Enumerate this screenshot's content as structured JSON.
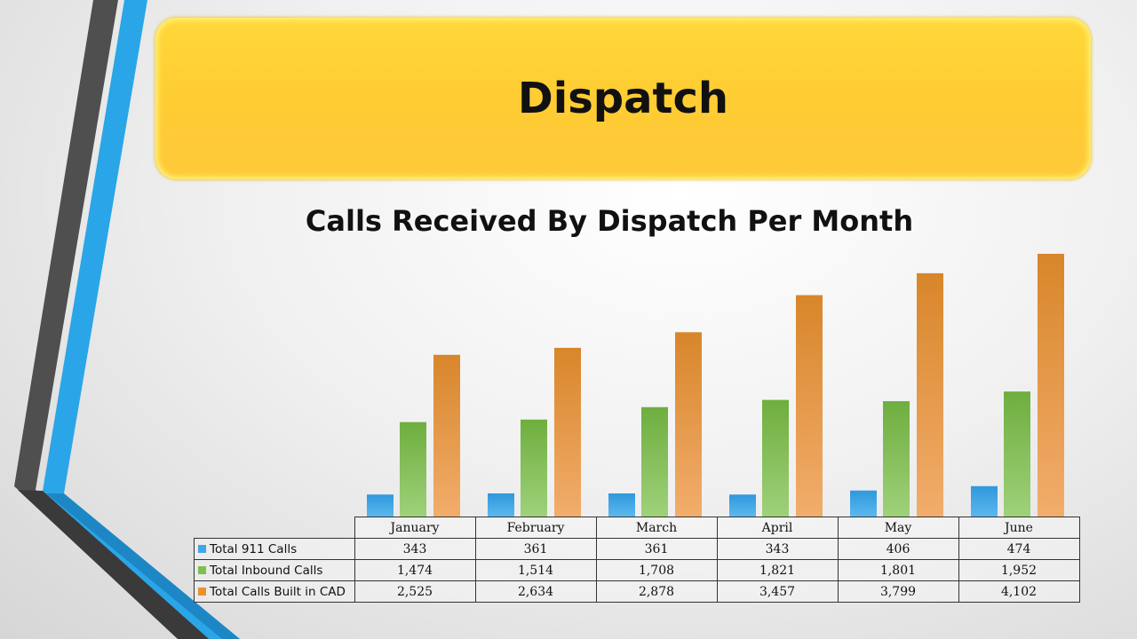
{
  "slide": {
    "title": "Dispatch"
  },
  "colors": {
    "banner": "#ffcc33",
    "series": [
      "#3fa7e6",
      "#7fbf4d",
      "#e8922f"
    ],
    "accent_blue": "#2aa6e8",
    "accent_gray": "#555555"
  },
  "chart_data": {
    "type": "bar",
    "title": "Calls Received By Dispatch Per Month",
    "xlabel": "",
    "ylabel": "",
    "ylim": [
      0,
      4200
    ],
    "grid": false,
    "legend": "data table",
    "categories": [
      "January",
      "February",
      "March",
      "April",
      "May",
      "June"
    ],
    "series": [
      {
        "name": "Total 911 Calls",
        "values": [
          343,
          361,
          361,
          343,
          406,
          474
        ],
        "display": [
          "343",
          "361",
          "361",
          "343",
          "406",
          "474"
        ]
      },
      {
        "name": "Total Inbound Calls",
        "values": [
          1474,
          1514,
          1708,
          1821,
          1801,
          1952
        ],
        "display": [
          "1,474",
          "1,514",
          "1,708",
          "1,821",
          "1,801",
          "1,952"
        ]
      },
      {
        "name": "Total Calls Built in CAD",
        "values": [
          2525,
          2634,
          2878,
          3457,
          3799,
          4102
        ],
        "display": [
          "2,525",
          "2,634",
          "2,878",
          "3,457",
          "3,799",
          "4,102"
        ]
      }
    ]
  }
}
